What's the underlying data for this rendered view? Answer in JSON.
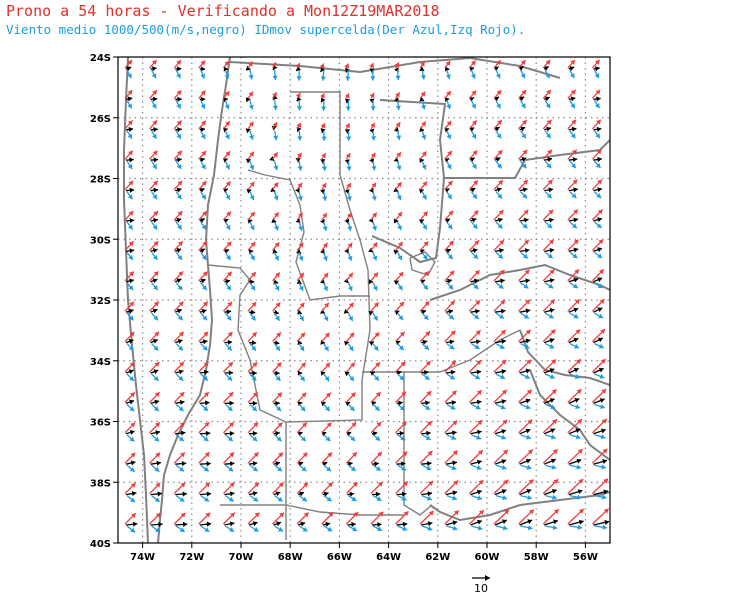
{
  "header": {
    "title": "Prono a 54 horas - Verificando a Mon12Z19MAR2018",
    "subtitle": "Viento medio 1000/500(m/s,negro) IDmov supercelda(Der Azul,Izq Rojo)."
  },
  "map": {
    "lon_range": [
      -75,
      -55
    ],
    "lat_range": [
      -40,
      -24
    ],
    "lat_ticks": [
      {
        "value": -24,
        "label": "24S"
      },
      {
        "value": -26,
        "label": "26S"
      },
      {
        "value": -28,
        "label": "28S"
      },
      {
        "value": -30,
        "label": "30S"
      },
      {
        "value": -32,
        "label": "32S"
      },
      {
        "value": -34,
        "label": "34S"
      },
      {
        "value": -36,
        "label": "36S"
      },
      {
        "value": -38,
        "label": "38S"
      },
      {
        "value": -40,
        "label": "40S"
      }
    ],
    "lon_ticks": [
      {
        "value": -74,
        "label": "74W"
      },
      {
        "value": -72,
        "label": "72W"
      },
      {
        "value": -70,
        "label": "70W"
      },
      {
        "value": -68,
        "label": "68W"
      },
      {
        "value": -66,
        "label": "66W"
      },
      {
        "value": -64,
        "label": "64W"
      },
      {
        "value": -62,
        "label": "62W"
      },
      {
        "value": -60,
        "label": "60W"
      },
      {
        "value": -58,
        "label": "58W"
      },
      {
        "value": -56,
        "label": "56W"
      }
    ],
    "grid": "dotted",
    "reference_vector": {
      "value": 10,
      "label": "10"
    },
    "colors": {
      "mean_wind": "#000000",
      "right_mover": "#1e9be0",
      "left_mover": "#f03c3c",
      "boundaries": "#808080",
      "grid": "#8a8a8a"
    }
  }
}
